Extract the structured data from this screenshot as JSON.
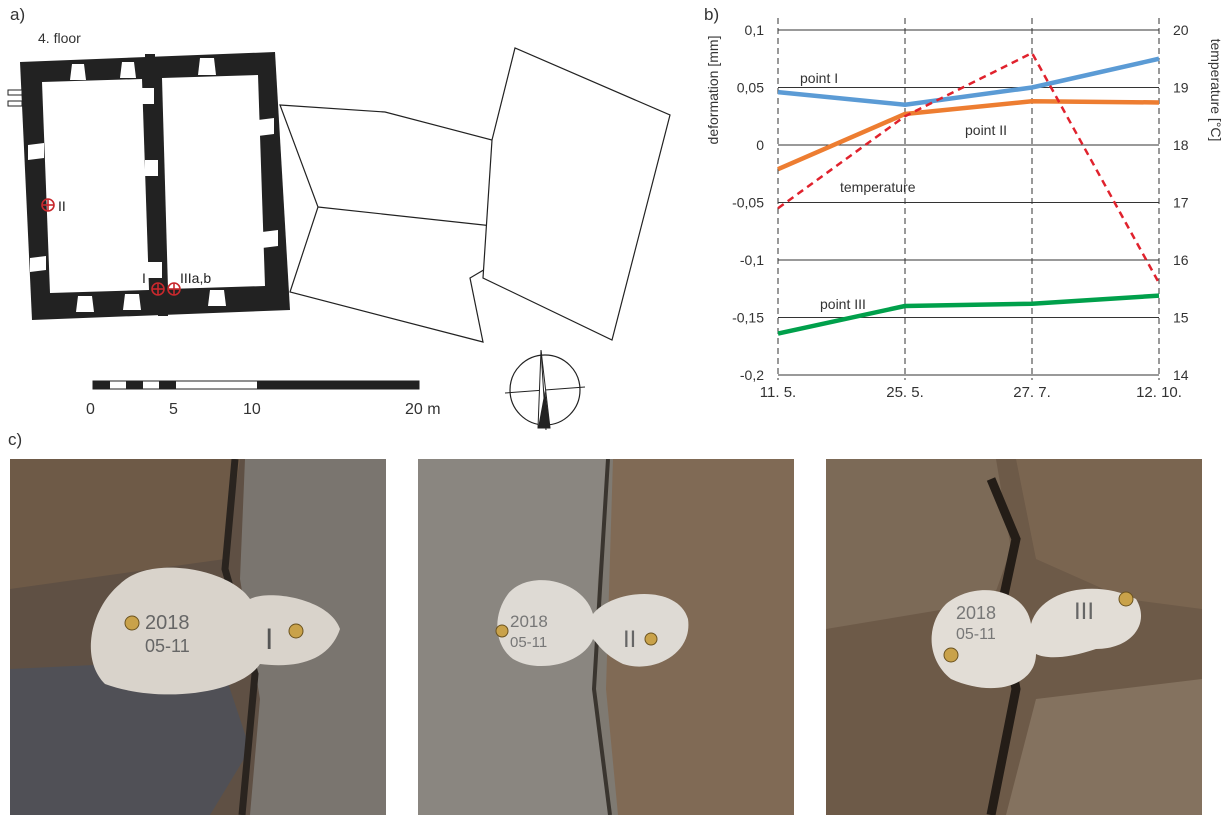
{
  "panels": {
    "a": "a)",
    "b": "b)",
    "c": "c)"
  },
  "plan": {
    "floor_label": "4. floor",
    "points": [
      "II",
      "I",
      "IIIa,b"
    ],
    "scale": {
      "ticks": [
        "0",
        "5",
        "10",
        "20 m"
      ]
    }
  },
  "chart_data": {
    "type": "line",
    "x": [
      "11. 5.",
      "25. 5.",
      "27. 7.",
      "12. 10."
    ],
    "ylabel": "deformation [mm]",
    "ylabel_right": "temperature [°C]",
    "ylim": [
      -0.2,
      0.1
    ],
    "ylim_right": [
      14,
      20
    ],
    "yticks": [
      "0,1",
      "0,05",
      "0",
      "-0,05",
      "-0,1",
      "-0,15",
      "-0,2"
    ],
    "yticks_right": [
      "20",
      "19",
      "18",
      "17",
      "16",
      "15",
      "14"
    ],
    "grid": true,
    "series": [
      {
        "name": "point I",
        "axis": "left",
        "color": "#5b9bd5",
        "dash": false,
        "values": [
          0.046,
          0.035,
          0.05,
          0.075
        ]
      },
      {
        "name": "point II",
        "axis": "left",
        "color": "#ed7d31",
        "dash": false,
        "values": [
          -0.021,
          0.027,
          0.038,
          0.037
        ]
      },
      {
        "name": "point III",
        "axis": "left",
        "color": "#00a04b",
        "dash": false,
        "values": [
          -0.164,
          -0.14,
          -0.138,
          -0.131
        ]
      },
      {
        "name": "temperature",
        "axis": "right",
        "color": "#e0222d",
        "dash": true,
        "values": [
          16.9,
          18.5,
          19.6,
          15.6
        ]
      }
    ]
  },
  "photos": [
    {
      "tag": "2018\n05-11",
      "roman": "I",
      "wall": "#6b5a4a",
      "plaster": "#d9d3cb"
    },
    {
      "tag": "2018\n05-11",
      "roman": "II",
      "wall": "#7d7468",
      "plaster": "#dedad4"
    },
    {
      "tag": "2018\n05-11",
      "roman": "III",
      "wall": "#6e5a46",
      "plaster": "#e2ddd6"
    }
  ]
}
